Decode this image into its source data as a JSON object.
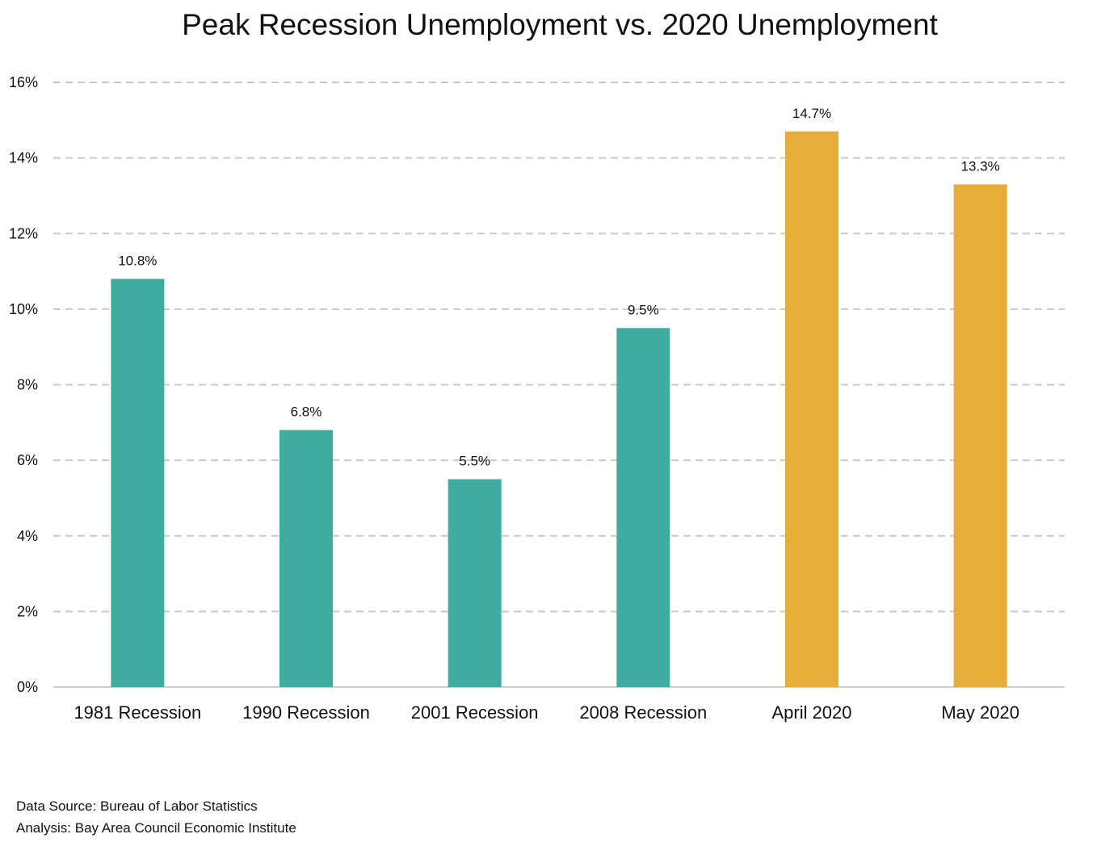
{
  "chart_data": {
    "type": "bar",
    "title": "Peak Recession Unemployment vs. 2020 Unemployment",
    "xlabel": "",
    "ylabel": "",
    "categories": [
      "1981 Recession",
      "1990 Recession",
      "2001 Recession",
      "2008 Recession",
      "April 2020",
      "May 2020"
    ],
    "values": [
      10.8,
      6.8,
      5.5,
      9.5,
      14.7,
      13.3
    ],
    "data_labels": [
      "10.8%",
      "6.8%",
      "5.5%",
      "9.5%",
      "14.7%",
      "13.3%"
    ],
    "bar_colors": [
      "#3eada0",
      "#3eada0",
      "#3eada0",
      "#3eada0",
      "#e6ae37",
      "#e6ae37"
    ],
    "ylim": [
      0,
      16
    ],
    "yticks": [
      0,
      2,
      4,
      6,
      8,
      10,
      12,
      14,
      16
    ],
    "ytick_labels": [
      "0%",
      "2%",
      "4%",
      "6%",
      "8%",
      "10%",
      "12%",
      "14%",
      "16%"
    ],
    "grid": "horizontal dashed",
    "legend": "none"
  },
  "footer": {
    "source": "Data Source: Bureau of Labor Statistics",
    "analysis": "Analysis: Bay Area Council Economic Institute"
  }
}
